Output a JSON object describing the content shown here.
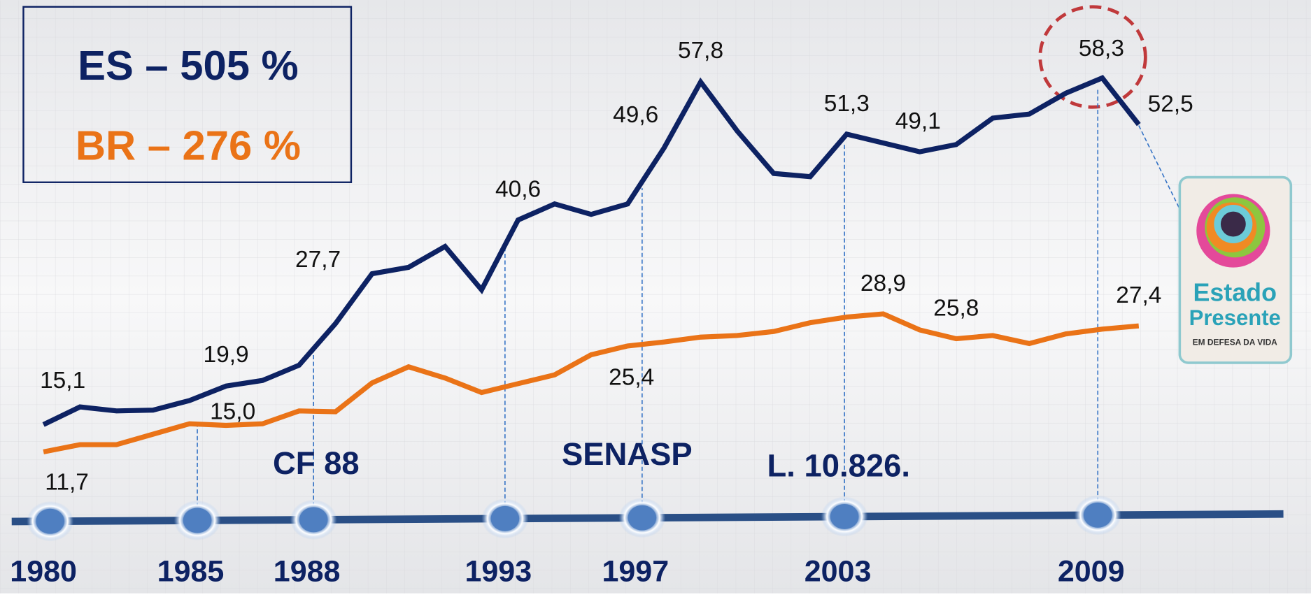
{
  "chart_data": {
    "type": "line",
    "x": [
      1980,
      1981,
      1982,
      1983,
      1984,
      1985,
      1986,
      1987,
      1988,
      1989,
      1990,
      1991,
      1992,
      1993,
      1994,
      1995,
      1996,
      1997,
      1998,
      1999,
      2000,
      2001,
      2002,
      2003,
      2004,
      2005,
      2006,
      2007,
      2008,
      2009,
      2010
    ],
    "xlim": [
      1980,
      2010
    ],
    "ylim": [
      0,
      68
    ],
    "series": [
      {
        "name": "ES",
        "color": "#0d2263",
        "values": [
          15.1,
          17.3,
          16.8,
          16.9,
          18.1,
          19.9,
          20.6,
          22.5,
          27.7,
          33.9,
          34.7,
          37.3,
          31.9,
          40.6,
          42.6,
          41.3,
          42.6,
          49.6,
          57.8,
          51.7,
          46.4,
          46.0,
          51.3,
          50.2,
          49.1,
          50.0,
          53.3,
          53.8,
          56.4,
          58.3,
          52.5
        ],
        "value_labels": [
          "15,1",
          null,
          null,
          null,
          null,
          "19,9",
          null,
          null,
          "27,7",
          null,
          null,
          null,
          null,
          "40,6",
          null,
          null,
          null,
          "49,6",
          "57,8",
          null,
          null,
          null,
          "51,3",
          null,
          "49,1",
          null,
          null,
          null,
          null,
          "58,3",
          "52,5"
        ]
      },
      {
        "name": "BR",
        "color": "#ea7317",
        "values": [
          11.7,
          12.6,
          12.6,
          13.9,
          15.2,
          15.0,
          15.2,
          16.8,
          16.7,
          20.3,
          22.3,
          20.9,
          19.1,
          20.2,
          21.3,
          23.8,
          24.9,
          25.4,
          26.0,
          26.2,
          26.7,
          27.8,
          28.5,
          28.9,
          26.9,
          25.8,
          26.2,
          25.2,
          26.4,
          27.0,
          27.4
        ],
        "value_labels": [
          "11,7",
          null,
          null,
          null,
          null,
          "15,0",
          null,
          null,
          null,
          null,
          null,
          null,
          null,
          null,
          null,
          null,
          null,
          "25,4",
          null,
          null,
          null,
          null,
          null,
          "28,9",
          null,
          "25,8",
          null,
          null,
          null,
          null,
          "27,4"
        ]
      }
    ],
    "summary": [
      "ES – 505 %",
      "BR – 276 %"
    ],
    "timeline": [
      "1980",
      "1985",
      "1988",
      "1993",
      "1997",
      "2003",
      "2009"
    ],
    "events": [
      "CF 88",
      "SENASP",
      "L. 10.826."
    ],
    "logo": [
      "Estado",
      "Presente",
      "EM DEFESA DA VIDA"
    ]
  }
}
